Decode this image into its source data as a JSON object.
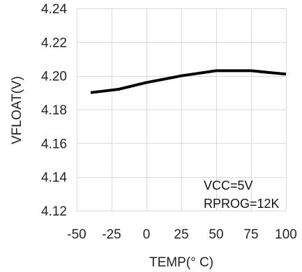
{
  "chart_data": {
    "type": "line",
    "title": "",
    "xlabel": "TEMP(° C)",
    "ylabel": "VFLOAT(V)",
    "x": [
      -40,
      -20,
      0,
      25,
      50,
      75,
      100
    ],
    "series": [
      {
        "values": [
          4.19,
          4.192,
          4.196,
          4.2,
          4.203,
          4.203,
          4.201
        ]
      }
    ],
    "xlim": [
      -50,
      100
    ],
    "ylim": [
      4.12,
      4.24
    ],
    "xticks": [
      -50,
      -25,
      0,
      25,
      50,
      75,
      100
    ],
    "yticks": [
      4.12,
      4.14,
      4.16,
      4.18,
      4.2,
      4.22,
      4.24
    ],
    "xtick_labels": [
      "-50",
      "-25",
      "0",
      "25",
      "50",
      "75",
      "100"
    ],
    "ytick_labels": [
      "4.12",
      "4.14",
      "4.16",
      "4.18",
      "4.20",
      "4.22",
      "4.24"
    ],
    "grid": true,
    "line_color": "#000000",
    "grid_color": "#d9d9d9",
    "annotations": [
      "VCC=5V",
      "RPROG=12K"
    ]
  }
}
